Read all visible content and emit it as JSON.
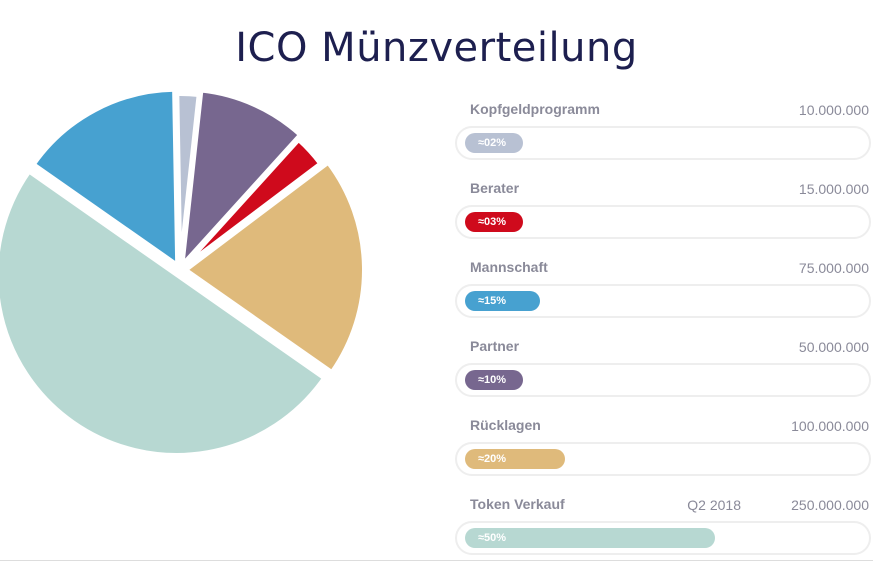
{
  "page": {
    "title": "ICO Münzverteilung"
  },
  "chart_data": {
    "type": "pie",
    "title": "ICO Münzverteilung",
    "slices": [
      {
        "label": "Token Verkauf",
        "value": 250000000,
        "percent_label": "≈50%",
        "fraction": 0.5,
        "extra": "Q2 2018",
        "color": "#b7d8d2"
      },
      {
        "label": "Mannschaft",
        "value": 75000000,
        "percent_label": "≈15%",
        "fraction": 0.15,
        "color": "#47a1d0"
      },
      {
        "label": "Kopfgeldprogramm",
        "value": 10000000,
        "percent_label": "≈02%",
        "fraction": 0.02,
        "color": "#b8c1d3"
      },
      {
        "label": "Partner",
        "value": 50000000,
        "percent_label": "≈10%",
        "fraction": 0.1,
        "color": "#77678f"
      },
      {
        "label": "Berater",
        "value": 15000000,
        "percent_label": "≈03%",
        "fraction": 0.03,
        "color": "#cf0a1c"
      },
      {
        "label": "Rücklagen",
        "value": 100000000,
        "percent_label": "≈20%",
        "fraction": 0.2,
        "color": "#dfba7b"
      }
    ]
  },
  "legend": {
    "rows": [
      {
        "label": "Kopfgeldprogramm",
        "extra": "",
        "value": "10.000.000",
        "percent": "≈02%",
        "fill_fraction": 0.02,
        "color": "#b8c1d3"
      },
      {
        "label": "Berater",
        "extra": "",
        "value": "15.000.000",
        "percent": "≈03%",
        "fill_fraction": 0.03,
        "color": "#cf0a1c"
      },
      {
        "label": "Mannschaft",
        "extra": "",
        "value": "75.000.000",
        "percent": "≈15%",
        "fill_fraction": 0.15,
        "color": "#47a1d0"
      },
      {
        "label": "Partner",
        "extra": "",
        "value": "50.000.000",
        "percent": "≈10%",
        "fill_fraction": 0.1,
        "color": "#77678f"
      },
      {
        "label": "Rücklagen",
        "extra": "",
        "value": "100.000.000",
        "percent": "≈20%",
        "fill_fraction": 0.2,
        "color": "#dfba7b"
      },
      {
        "label": "Token Verkauf",
        "extra": "Q2 2018",
        "value": "250.000.000",
        "percent": "≈50%",
        "fill_fraction": 0.5,
        "color": "#b7d8d2"
      }
    ]
  }
}
